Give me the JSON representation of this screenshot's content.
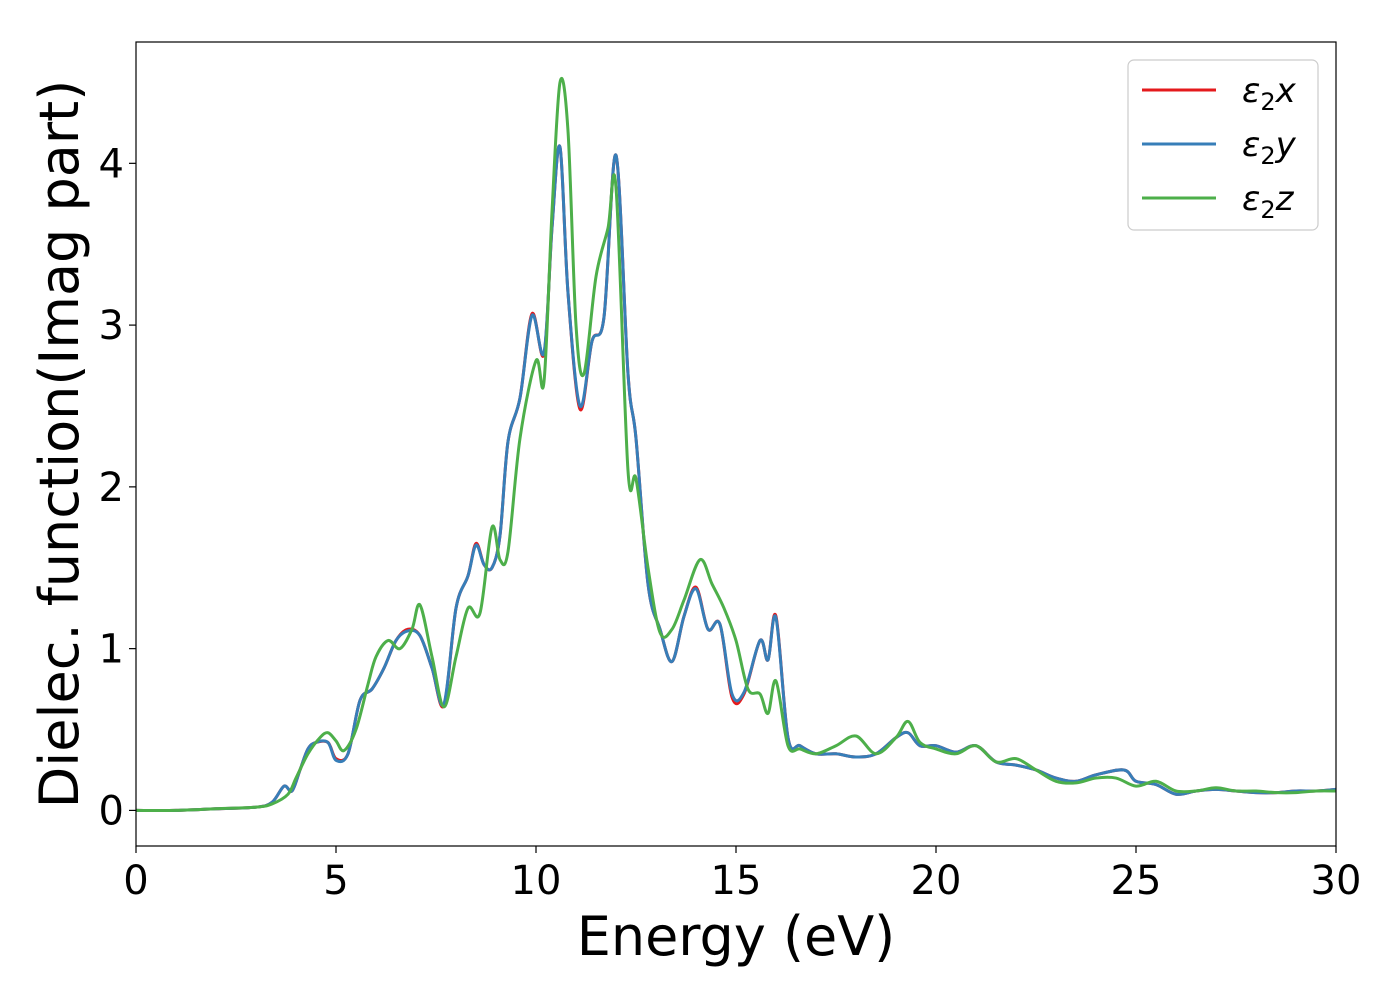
{
  "chart_data": {
    "type": "line",
    "title": "",
    "xlabel": "Energy (eV)",
    "ylabel": "Dielec. function(Imag part)",
    "xlim": [
      0,
      30
    ],
    "ylim": [
      -0.22,
      4.75
    ],
    "xticks": [
      0,
      5,
      10,
      15,
      20,
      25,
      30
    ],
    "yticks": [
      0,
      1,
      2,
      3,
      4
    ],
    "grid": false,
    "legend_position": "top-right",
    "series": [
      {
        "name": "ε2x",
        "legend_label": {
          "base": "ε",
          "sub": "2",
          "suffix": "x"
        },
        "color": "#e41a1c",
        "x": [
          0,
          1,
          2,
          3,
          3.4,
          3.7,
          3.9,
          4.1,
          4.3,
          4.5,
          4.8,
          5.0,
          5.3,
          5.6,
          5.9,
          6.2,
          6.5,
          6.8,
          7.1,
          7.4,
          7.7,
          8.0,
          8.3,
          8.5,
          8.7,
          8.9,
          9.1,
          9.3,
          9.6,
          9.9,
          10.2,
          10.4,
          10.6,
          10.8,
          11.1,
          11.4,
          11.7,
          12.0,
          12.3,
          12.5,
          12.8,
          13.1,
          13.4,
          13.7,
          14.0,
          14.3,
          14.6,
          14.9,
          15.2,
          15.6,
          15.8,
          16.0,
          16.3,
          16.6,
          17.0,
          17.5,
          18.0,
          18.5,
          19.0,
          19.3,
          19.6,
          20.0,
          20.5,
          21.0,
          21.5,
          22.0,
          22.5,
          23.0,
          23.5,
          24.0,
          24.7,
          25.0,
          25.5,
          26.0,
          26.5,
          27.0,
          27.5,
          28.0,
          28.5,
          29.0,
          29.5,
          30.0
        ],
        "y": [
          0.0,
          0.0,
          0.01,
          0.02,
          0.05,
          0.15,
          0.12,
          0.25,
          0.38,
          0.42,
          0.42,
          0.32,
          0.35,
          0.68,
          0.75,
          0.88,
          1.05,
          1.12,
          1.08,
          0.88,
          0.65,
          1.25,
          1.45,
          1.65,
          1.52,
          1.5,
          1.7,
          2.28,
          2.55,
          3.07,
          2.82,
          3.6,
          4.1,
          3.2,
          2.48,
          2.9,
          3.05,
          4.05,
          2.7,
          2.3,
          1.4,
          1.12,
          0.92,
          1.2,
          1.38,
          1.12,
          1.15,
          0.7,
          0.72,
          1.05,
          0.93,
          1.2,
          0.45,
          0.4,
          0.35,
          0.35,
          0.33,
          0.35,
          0.45,
          0.48,
          0.4,
          0.4,
          0.36,
          0.4,
          0.3,
          0.28,
          0.25,
          0.2,
          0.18,
          0.22,
          0.25,
          0.18,
          0.16,
          0.1,
          0.12,
          0.13,
          0.12,
          0.11,
          0.11,
          0.12,
          0.12,
          0.13
        ]
      },
      {
        "name": "ε2y",
        "legend_label": {
          "base": "ε",
          "sub": "2",
          "suffix": "y"
        },
        "color": "#377eb8",
        "x": [
          0,
          1,
          2,
          3,
          3.4,
          3.7,
          3.9,
          4.1,
          4.3,
          4.5,
          4.8,
          5.0,
          5.3,
          5.6,
          5.9,
          6.2,
          6.5,
          6.8,
          7.1,
          7.4,
          7.7,
          8.0,
          8.3,
          8.5,
          8.7,
          8.9,
          9.1,
          9.3,
          9.6,
          9.9,
          10.2,
          10.4,
          10.6,
          10.8,
          11.1,
          11.4,
          11.7,
          12.0,
          12.3,
          12.5,
          12.8,
          13.1,
          13.4,
          13.7,
          14.0,
          14.3,
          14.6,
          14.9,
          15.2,
          15.6,
          15.8,
          16.0,
          16.3,
          16.6,
          17.0,
          17.5,
          18.0,
          18.5,
          19.0,
          19.3,
          19.6,
          20.0,
          20.5,
          21.0,
          21.5,
          22.0,
          22.5,
          23.0,
          23.5,
          24.0,
          24.7,
          25.0,
          25.5,
          26.0,
          26.5,
          27.0,
          27.5,
          28.0,
          28.5,
          29.0,
          29.5,
          30.0
        ],
        "y": [
          0.0,
          0.0,
          0.01,
          0.02,
          0.05,
          0.15,
          0.12,
          0.25,
          0.38,
          0.42,
          0.42,
          0.31,
          0.35,
          0.68,
          0.75,
          0.88,
          1.05,
          1.11,
          1.08,
          0.88,
          0.66,
          1.25,
          1.45,
          1.64,
          1.52,
          1.5,
          1.7,
          2.28,
          2.55,
          3.06,
          2.83,
          3.6,
          4.1,
          3.2,
          2.5,
          2.9,
          3.05,
          4.05,
          2.7,
          2.3,
          1.4,
          1.12,
          0.92,
          1.2,
          1.37,
          1.12,
          1.15,
          0.72,
          0.73,
          1.05,
          0.93,
          1.19,
          0.45,
          0.4,
          0.35,
          0.35,
          0.33,
          0.35,
          0.45,
          0.48,
          0.4,
          0.4,
          0.36,
          0.4,
          0.3,
          0.28,
          0.25,
          0.2,
          0.18,
          0.22,
          0.25,
          0.18,
          0.16,
          0.1,
          0.12,
          0.13,
          0.12,
          0.11,
          0.11,
          0.12,
          0.12,
          0.13
        ]
      },
      {
        "name": "ε2z",
        "legend_label": {
          "base": "ε",
          "sub": "2",
          "suffix": "z"
        },
        "color": "#4daf4a",
        "x": [
          0,
          1,
          2,
          3,
          3.4,
          3.8,
          4.0,
          4.3,
          4.6,
          4.8,
          5.0,
          5.2,
          5.5,
          5.8,
          6.0,
          6.3,
          6.6,
          6.9,
          7.1,
          7.4,
          7.7,
          8.0,
          8.3,
          8.6,
          8.9,
          9.1,
          9.3,
          9.6,
          10.0,
          10.2,
          10.4,
          10.6,
          10.8,
          11.0,
          11.2,
          11.5,
          11.8,
          12.0,
          12.3,
          12.5,
          12.8,
          13.1,
          13.4,
          13.7,
          14.1,
          14.4,
          14.7,
          15.0,
          15.3,
          15.6,
          15.8,
          16.0,
          16.3,
          16.6,
          17.0,
          17.5,
          18.0,
          18.5,
          19.0,
          19.3,
          19.6,
          20.0,
          20.5,
          21.0,
          21.5,
          22.0,
          22.5,
          23.0,
          23.5,
          24.0,
          24.5,
          25.0,
          25.5,
          26.0,
          26.5,
          27.0,
          27.5,
          28.0,
          28.5,
          29.0,
          29.5,
          30.0
        ],
        "y": [
          0.0,
          0.0,
          0.01,
          0.02,
          0.04,
          0.1,
          0.2,
          0.35,
          0.45,
          0.48,
          0.43,
          0.37,
          0.5,
          0.78,
          0.95,
          1.05,
          1.0,
          1.12,
          1.27,
          0.95,
          0.64,
          0.95,
          1.25,
          1.22,
          1.75,
          1.55,
          1.6,
          2.3,
          2.78,
          2.65,
          3.7,
          4.5,
          4.2,
          3.0,
          2.7,
          3.3,
          3.6,
          3.85,
          2.1,
          2.05,
          1.5,
          1.1,
          1.12,
          1.3,
          1.55,
          1.4,
          1.25,
          1.05,
          0.75,
          0.72,
          0.6,
          0.8,
          0.4,
          0.38,
          0.35,
          0.4,
          0.46,
          0.35,
          0.45,
          0.55,
          0.42,
          0.38,
          0.35,
          0.4,
          0.3,
          0.32,
          0.25,
          0.18,
          0.17,
          0.2,
          0.2,
          0.15,
          0.18,
          0.12,
          0.12,
          0.14,
          0.12,
          0.12,
          0.11,
          0.11,
          0.12,
          0.12
        ]
      }
    ]
  }
}
